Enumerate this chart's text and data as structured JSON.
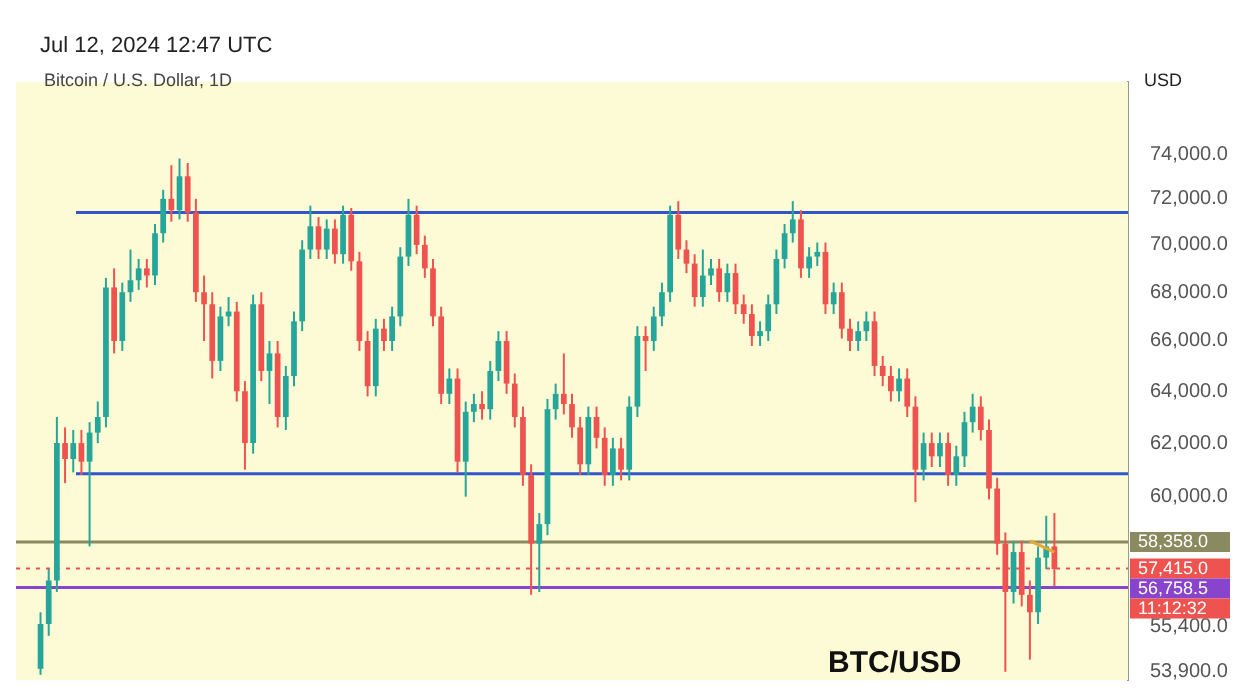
{
  "chart_data": {
    "type": "candlestick",
    "title": "Bitcoin / U.S. Dollar, 1D",
    "ylabel": "USD",
    "annotations": [
      "Jul 12, 2024 12:47 UTC",
      "BTC/USD",
      "11:12:32"
    ],
    "categories": [
      null,
      null,
      null,
      null,
      null,
      null,
      null,
      null,
      null,
      null,
      null,
      null,
      null,
      null,
      null,
      null,
      null,
      null,
      null,
      null,
      null,
      null,
      null,
      null,
      null,
      null,
      null,
      null,
      null,
      null,
      null,
      null,
      null,
      null,
      null,
      null,
      null,
      null,
      null,
      null,
      null,
      null,
      null,
      null,
      null,
      null,
      null,
      null,
      null,
      null,
      null,
      null,
      null,
      null,
      null,
      null,
      null,
      null,
      null,
      null,
      null,
      null,
      null,
      null,
      null,
      null,
      null,
      null,
      null,
      null,
      null,
      null,
      null,
      null,
      null,
      null,
      null,
      null,
      null,
      null,
      null,
      null,
      null,
      null,
      null,
      null,
      null,
      null,
      null,
      null,
      null,
      null,
      null,
      null,
      null,
      null,
      null,
      null,
      null,
      null,
      null,
      null,
      null,
      null,
      null,
      null,
      null,
      null,
      null,
      null,
      null,
      null,
      null,
      null,
      null,
      null,
      null,
      null,
      null,
      null,
      null,
      null,
      null,
      null,
      null
    ],
    "ohlc": [
      [
        54000,
        55900,
        53800,
        55500
      ],
      [
        55500,
        57400,
        55100,
        57000
      ],
      [
        57000,
        63000,
        56600,
        62000
      ],
      [
        62000,
        62600,
        60500,
        61400
      ],
      [
        61400,
        62500,
        60900,
        62000
      ],
      [
        62000,
        62500,
        60800,
        61300
      ],
      [
        61300,
        62800,
        58200,
        62400
      ],
      [
        62400,
        63600,
        62000,
        63000
      ],
      [
        63000,
        68600,
        62600,
        68200
      ],
      [
        68200,
        69000,
        65500,
        66000
      ],
      [
        66000,
        68400,
        65600,
        68000
      ],
      [
        68000,
        69800,
        67600,
        68500
      ],
      [
        68500,
        69400,
        68100,
        69000
      ],
      [
        69000,
        69400,
        68200,
        68700
      ],
      [
        68700,
        70900,
        68300,
        70500
      ],
      [
        70500,
        72400,
        70100,
        72000
      ],
      [
        72000,
        73500,
        71000,
        71500
      ],
      [
        71500,
        73800,
        71100,
        73000
      ],
      [
        73000,
        73600,
        71000,
        71400
      ],
      [
        71400,
        72000,
        67600,
        68000
      ],
      [
        68000,
        68700,
        66000,
        67500
      ],
      [
        67500,
        68000,
        64500,
        65200
      ],
      [
        65200,
        67400,
        64800,
        67000
      ],
      [
        67000,
        67800,
        66600,
        67200
      ],
      [
        67200,
        67600,
        63600,
        64000
      ],
      [
        64000,
        64400,
        61000,
        62000
      ],
      [
        62000,
        67900,
        61600,
        67500
      ],
      [
        67500,
        68000,
        64400,
        64800
      ],
      [
        64800,
        66000,
        63500,
        65500
      ],
      [
        65500,
        66000,
        62600,
        63000
      ],
      [
        63000,
        65000,
        62500,
        64600
      ],
      [
        64600,
        67200,
        64200,
        66800
      ],
      [
        66800,
        70200,
        66400,
        69800
      ],
      [
        69800,
        71700,
        69400,
        70800
      ],
      [
        70800,
        71200,
        69400,
        69800
      ],
      [
        69800,
        71100,
        69400,
        70700
      ],
      [
        70700,
        71100,
        69200,
        69600
      ],
      [
        69600,
        71700,
        69200,
        71300
      ],
      [
        71300,
        71600,
        68900,
        69300
      ],
      [
        69300,
        69700,
        65600,
        66000
      ],
      [
        66000,
        66400,
        63800,
        64200
      ],
      [
        64200,
        66900,
        63800,
        66500
      ],
      [
        66500,
        66900,
        65600,
        66000
      ],
      [
        66000,
        67400,
        65600,
        67000
      ],
      [
        67000,
        69900,
        66600,
        69500
      ],
      [
        69500,
        72000,
        69100,
        71300
      ],
      [
        71300,
        71700,
        69600,
        70000
      ],
      [
        70000,
        70400,
        68600,
        69000
      ],
      [
        69000,
        69400,
        66600,
        67000
      ],
      [
        67000,
        67400,
        63500,
        63900
      ],
      [
        63900,
        64900,
        63500,
        64500
      ],
      [
        64500,
        64900,
        60900,
        61300
      ],
      [
        61300,
        63600,
        60000,
        63200
      ],
      [
        63200,
        63900,
        62800,
        63500
      ],
      [
        63500,
        64000,
        62900,
        63300
      ],
      [
        63300,
        65200,
        62900,
        64800
      ],
      [
        64800,
        66400,
        64400,
        66000
      ],
      [
        66000,
        66400,
        63900,
        64300
      ],
      [
        64300,
        64700,
        62600,
        63000
      ],
      [
        63000,
        63400,
        60400,
        60800
      ],
      [
        60800,
        61200,
        56500,
        58300
      ],
      [
        58300,
        59400,
        56600,
        59000
      ],
      [
        59000,
        63700,
        58600,
        63300
      ],
      [
        63300,
        64300,
        62900,
        63900
      ],
      [
        63900,
        65500,
        63100,
        63500
      ],
      [
        63500,
        63900,
        62200,
        62600
      ],
      [
        62600,
        63000,
        60800,
        61200
      ],
      [
        61200,
        63400,
        60800,
        63000
      ],
      [
        63000,
        63400,
        61800,
        62200
      ],
      [
        62200,
        62600,
        60400,
        60800
      ],
      [
        60800,
        62200,
        60400,
        61800
      ],
      [
        61800,
        62200,
        60600,
        61000
      ],
      [
        61000,
        63800,
        60600,
        63400
      ],
      [
        63400,
        66600,
        63000,
        66200
      ],
      [
        66200,
        66600,
        64800,
        66000
      ],
      [
        66000,
        67400,
        65600,
        67000
      ],
      [
        67000,
        68400,
        66600,
        68000
      ],
      [
        68000,
        71700,
        67600,
        71300
      ],
      [
        71300,
        71900,
        69400,
        69800
      ],
      [
        69800,
        70200,
        68800,
        69200
      ],
      [
        69200,
        69600,
        67400,
        67800
      ],
      [
        67800,
        69800,
        67400,
        68700
      ],
      [
        68700,
        69400,
        68300,
        69000
      ],
      [
        69000,
        69400,
        67600,
        68000
      ],
      [
        68000,
        69200,
        67600,
        68800
      ],
      [
        68800,
        69200,
        67100,
        67500
      ],
      [
        67500,
        67900,
        66700,
        67100
      ],
      [
        67100,
        67500,
        65800,
        66200
      ],
      [
        66200,
        66800,
        65800,
        66400
      ],
      [
        66400,
        67900,
        66000,
        67500
      ],
      [
        67500,
        69800,
        67100,
        69400
      ],
      [
        69400,
        70900,
        69000,
        70500
      ],
      [
        70500,
        71900,
        70100,
        71100
      ],
      [
        71100,
        71500,
        68600,
        69000
      ],
      [
        69000,
        69900,
        68600,
        69500
      ],
      [
        69500,
        70100,
        69100,
        69700
      ],
      [
        69700,
        70100,
        67100,
        67500
      ],
      [
        67500,
        68400,
        67100,
        68000
      ],
      [
        68000,
        68400,
        66100,
        66500
      ],
      [
        66500,
        66900,
        65600,
        66000
      ],
      [
        66000,
        66800,
        65600,
        66400
      ],
      [
        66400,
        67200,
        66000,
        66800
      ],
      [
        66800,
        67200,
        64600,
        65000
      ],
      [
        65000,
        65400,
        64200,
        64600
      ],
      [
        64600,
        65000,
        63600,
        64000
      ],
      [
        64000,
        64900,
        63600,
        64500
      ],
      [
        64500,
        64900,
        63000,
        63400
      ],
      [
        63400,
        63800,
        59800,
        61000
      ],
      [
        61000,
        62400,
        60600,
        62000
      ],
      [
        62000,
        62400,
        61100,
        61500
      ],
      [
        61500,
        62400,
        61100,
        62000
      ],
      [
        62000,
        62400,
        60400,
        60800
      ],
      [
        60800,
        61900,
        60400,
        61500
      ],
      [
        61500,
        63200,
        61100,
        62800
      ],
      [
        62800,
        63900,
        62400,
        63400
      ],
      [
        63400,
        63800,
        62100,
        62500
      ],
      [
        62500,
        62900,
        59900,
        60300
      ],
      [
        60300,
        60700,
        57900,
        58300
      ],
      [
        58300,
        58700,
        53900,
        56600
      ],
      [
        56600,
        58400,
        56200,
        58000
      ],
      [
        58000,
        58400,
        56100,
        56500
      ],
      [
        56500,
        57000,
        54300,
        55900
      ],
      [
        55900,
        58200,
        55500,
        57800
      ],
      [
        57800,
        59300,
        57400,
        58200
      ],
      [
        58200,
        59400,
        56800,
        57400
      ]
    ],
    "series": [
      {
        "type": "line",
        "values": [
          null,
          null,
          null,
          null,
          null,
          null,
          null,
          null,
          null,
          null,
          null,
          null,
          null,
          null,
          null,
          null,
          null,
          null,
          null,
          null,
          null,
          null,
          null,
          null,
          null,
          null,
          null,
          null,
          null,
          null,
          null,
          null,
          null,
          null,
          null,
          null,
          null,
          null,
          null,
          null,
          null,
          null,
          null,
          null,
          null,
          null,
          null,
          null,
          null,
          null,
          null,
          null,
          null,
          null,
          null,
          null,
          null,
          null,
          null,
          null,
          null,
          null,
          null,
          null,
          null,
          null,
          null,
          null,
          null,
          null,
          null,
          null,
          null,
          null,
          null,
          null,
          null,
          null,
          null,
          null,
          null,
          null,
          null,
          null,
          null,
          null,
          null,
          null,
          null,
          null,
          null,
          null,
          null,
          null,
          null,
          null,
          null,
          null,
          null,
          null,
          null,
          null,
          null,
          null,
          null,
          null,
          null,
          null,
          null,
          null,
          null,
          null,
          null,
          null,
          null,
          null,
          null,
          null,
          null,
          null,
          null,
          58400,
          null,
          null,
          58000
        ],
        "color": "#e8a838"
      }
    ],
    "ref_lines": [
      {
        "axis": "y",
        "value": 71400,
        "color": "#3355cc"
      },
      {
        "axis": "y",
        "value": 60850,
        "color": "#3355cc"
      },
      {
        "axis": "y",
        "value": 58358,
        "label": "58,358.0",
        "color": "#8a8a60"
      },
      {
        "axis": "y",
        "value": 57415,
        "label": "57,415.0",
        "color": "#ef5350",
        "line_style": "dotted"
      },
      {
        "axis": "y",
        "value": 56758.5,
        "label": "56,758.5",
        "color": "#8844cc"
      }
    ],
    "log": true,
    "ylim": [
      53630,
      77340
    ],
    "yticks": [
      {
        "value": 53900,
        "label": "53,900.0"
      },
      {
        "value": 55400,
        "label": "55,400.0"
      },
      {
        "value": 60000,
        "label": "60,000.0"
      },
      {
        "value": 62000,
        "label": "62,000.0"
      },
      {
        "value": 64000,
        "label": "64,000.0"
      },
      {
        "value": 66000,
        "label": "66,000.0"
      },
      {
        "value": 68000,
        "label": "68,000.0"
      },
      {
        "value": 70000,
        "label": "70,000.0"
      },
      {
        "value": 72000,
        "label": "72,000.0"
      },
      {
        "value": 74000,
        "label": "74,000.0"
      }
    ],
    "tick_labels": "y",
    "grid": false,
    "legend": false
  }
}
